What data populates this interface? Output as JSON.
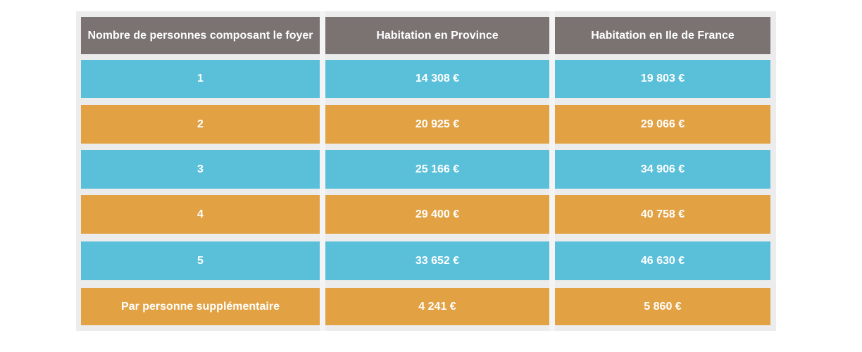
{
  "table": {
    "headers": [
      "Nombre de personnes composant le foyer",
      "Habitation en Province",
      "Habitation en Ile de France"
    ],
    "rows": [
      [
        "1",
        "14 308 €",
        "19 803 €"
      ],
      [
        "2",
        "20 925 €",
        "29 066 €"
      ],
      [
        "3",
        "25 166 €",
        "34 906 €"
      ],
      [
        "4",
        "29 400 €",
        "40 758 €"
      ],
      [
        "5",
        "33 652 €",
        "46 630 €"
      ],
      [
        "Par personne supplémentaire",
        "4 241 €",
        "5 860 €"
      ]
    ]
  },
  "colors": {
    "header": "#7a7372",
    "row_blue": "#5ac0da",
    "row_orange": "#e2a244",
    "frame": "#ececec"
  }
}
